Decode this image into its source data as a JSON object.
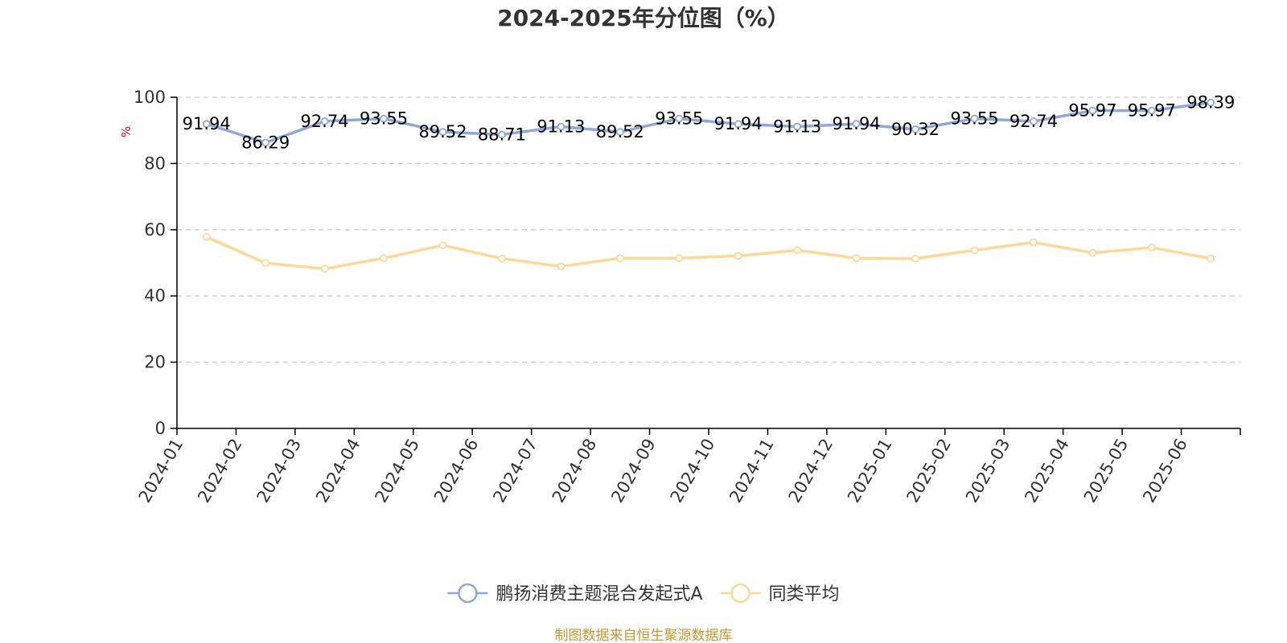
{
  "chart_data": {
    "type": "line",
    "title": "2024-2025年分位图（%）",
    "ylabel": "%",
    "xlabel": "",
    "ylim": [
      0,
      100
    ],
    "yticks": [
      0,
      20,
      40,
      60,
      80,
      100
    ],
    "grid": "horizontal-dashed",
    "legend_position": "bottom",
    "categories": [
      "2024-01",
      "2024-02",
      "2024-03",
      "2024-04",
      "2024-05",
      "2024-06",
      "2024-07",
      "2024-08",
      "2024-09",
      "2024-10",
      "2024-11",
      "2024-12",
      "2025-01",
      "2025-02",
      "2025-03",
      "2025-04",
      "2025-05",
      "2025-06"
    ],
    "series": [
      {
        "name": "鹏扬消费主题混合发起式A",
        "color": "#8ea8d9",
        "show_labels": true,
        "values": [
          91.94,
          86.29,
          92.74,
          93.55,
          89.52,
          88.71,
          91.13,
          89.52,
          93.55,
          91.94,
          91.13,
          91.94,
          90.32,
          93.55,
          92.74,
          95.97,
          95.97,
          98.39
        ]
      },
      {
        "name": "同类平均",
        "color": "#fcd899",
        "show_labels": false,
        "values": [
          57.8,
          49.9,
          48.2,
          51.4,
          55.3,
          51.3,
          48.9,
          51.4,
          51.4,
          52.1,
          53.8,
          51.4,
          51.3,
          53.8,
          56.2,
          53.0,
          54.6,
          51.3
        ]
      }
    ],
    "source": "制图数据来自恒生聚源数据库"
  },
  "colors": {
    "axis": "#000000",
    "grid": "#cccccc",
    "unit": "#ff0000",
    "source": "#c8962f",
    "text": "#333333"
  }
}
